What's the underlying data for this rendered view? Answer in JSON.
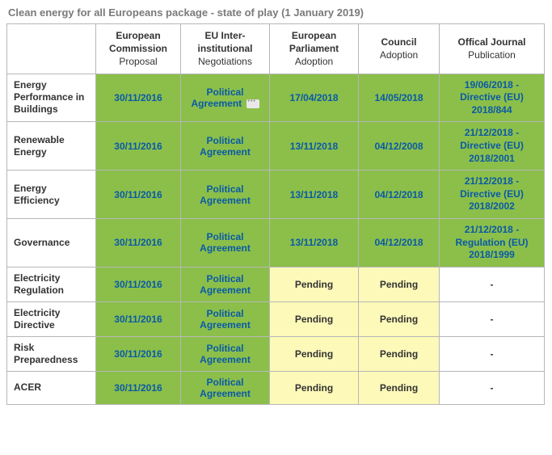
{
  "title": "Clean energy for all Europeans package - state of play (1 January 2019)",
  "colors": {
    "green": "#8bbf4a",
    "yellow": "#fcf9b9",
    "white": "#ffffff",
    "link": "#0a5aa6",
    "border": "#b7b7b7",
    "title": "#7a7a7a"
  },
  "columns": [
    {
      "strong": "European Commission",
      "sub": "Proposal"
    },
    {
      "strong": "EU Inter-institutional",
      "sub": "Negotiations"
    },
    {
      "strong": "European Parliament",
      "sub": "Adoption"
    },
    {
      "strong": "Council",
      "sub": "Adoption"
    },
    {
      "strong": "Offical Journal",
      "sub": "Publication"
    }
  ],
  "rows": [
    {
      "label": "Energy Performance in Buildings",
      "cells": [
        {
          "text": "30/11/2016",
          "bg": "green",
          "link": true
        },
        {
          "text": "Political Agreement",
          "bg": "green",
          "link": true,
          "icon": true
        },
        {
          "text": "17/04/2018",
          "bg": "green",
          "link": true
        },
        {
          "text": "14/05/2018",
          "bg": "green",
          "link": true
        },
        {
          "text": "19/06/2018 - Directive (EU) 2018/844",
          "bg": "green",
          "link": true,
          "multi": true
        }
      ]
    },
    {
      "label": "Renewable Energy",
      "cells": [
        {
          "text": "30/11/2016",
          "bg": "green",
          "link": true
        },
        {
          "text": "Political Agreement",
          "bg": "green",
          "link": true
        },
        {
          "text": "13/11/2018",
          "bg": "green",
          "link": true
        },
        {
          "text": "04/12/2008",
          "bg": "green",
          "link": true
        },
        {
          "text": "21/12/2018 - Directive (EU) 2018/2001",
          "bg": "green",
          "link": true,
          "multi": true
        }
      ]
    },
    {
      "label": "Energy Efficiency",
      "cells": [
        {
          "text": "30/11/2016",
          "bg": "green",
          "link": true
        },
        {
          "text": "Political Agreement",
          "bg": "green",
          "link": true
        },
        {
          "text": "13/11/2018",
          "bg": "green",
          "link": true
        },
        {
          "text": "04/12/2018",
          "bg": "green",
          "link": true
        },
        {
          "text": "21/12/2018 - Directive (EU) 2018/2002",
          "bg": "green",
          "link": true,
          "multi": true
        }
      ]
    },
    {
      "label": "Governance",
      "cells": [
        {
          "text": "30/11/2016",
          "bg": "green",
          "link": true
        },
        {
          "text": "Political Agreement",
          "bg": "green",
          "link": true
        },
        {
          "text": "13/11/2018",
          "bg": "green",
          "link": true
        },
        {
          "text": "04/12/2018",
          "bg": "green",
          "link": true
        },
        {
          "text": "21/12/2018 - Regulation (EU) 2018/1999",
          "bg": "green",
          "link": true,
          "multi": true
        }
      ]
    },
    {
      "label": "Electricity Regulation",
      "cells": [
        {
          "text": "30/11/2016",
          "bg": "green",
          "link": true
        },
        {
          "text": "Political Agreement",
          "bg": "green",
          "link": true
        },
        {
          "text": "Pending",
          "bg": "yellow"
        },
        {
          "text": "Pending",
          "bg": "yellow"
        },
        {
          "text": "-",
          "bg": "white"
        }
      ]
    },
    {
      "label": "Electricity Directive",
      "cells": [
        {
          "text": "30/11/2016",
          "bg": "green",
          "link": true
        },
        {
          "text": "Political Agreement",
          "bg": "green",
          "link": true
        },
        {
          "text": "Pending",
          "bg": "yellow"
        },
        {
          "text": "Pending",
          "bg": "yellow"
        },
        {
          "text": "-",
          "bg": "white"
        }
      ]
    },
    {
      "label": "Risk Preparedness",
      "cells": [
        {
          "text": "30/11/2016",
          "bg": "green",
          "link": true
        },
        {
          "text": "Political Agreement",
          "bg": "green",
          "link": true
        },
        {
          "text": "Pending",
          "bg": "yellow"
        },
        {
          "text": "Pending",
          "bg": "yellow"
        },
        {
          "text": "-",
          "bg": "white"
        }
      ]
    },
    {
      "label": "ACER",
      "cells": [
        {
          "text": "30/11/2016",
          "bg": "green",
          "link": true
        },
        {
          "text": "Political Agreement",
          "bg": "green",
          "link": true
        },
        {
          "text": "Pending",
          "bg": "yellow"
        },
        {
          "text": "Pending",
          "bg": "yellow"
        },
        {
          "text": "-",
          "bg": "white"
        }
      ]
    }
  ]
}
